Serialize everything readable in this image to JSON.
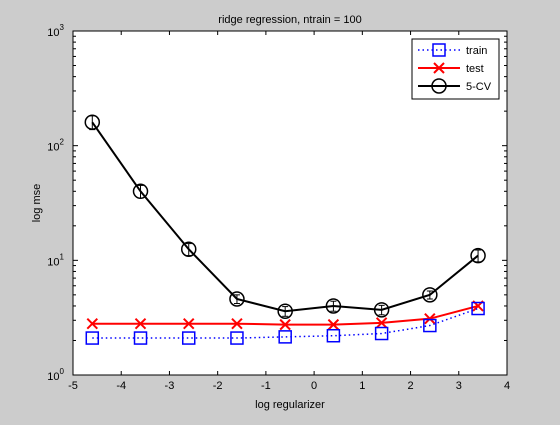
{
  "chart_data": {
    "type": "line",
    "title": "ridge regression, ntrain = 100",
    "xlabel": "log regularizer",
    "ylabel": "log mse",
    "xlim": [
      -5,
      4
    ],
    "ylim": [
      1,
      1000
    ],
    "yscale": "log",
    "grid": false,
    "legend_position": "top-right",
    "x_ticks": [
      "-5",
      "-4",
      "-3",
      "-2",
      "-1",
      "0",
      "1",
      "2",
      "3",
      "4"
    ],
    "y_ticks": [
      {
        "base": "10",
        "exp": "0"
      },
      {
        "base": "10",
        "exp": "1"
      },
      {
        "base": "10",
        "exp": "2"
      },
      {
        "base": "10",
        "exp": "3"
      }
    ],
    "x": [
      -4.6,
      -3.6,
      -2.6,
      -1.6,
      -0.6,
      0.4,
      1.4,
      2.4,
      3.4
    ],
    "series": [
      {
        "name": "train",
        "color": "#0000ff",
        "line": "dotted",
        "marker": "square",
        "values": [
          2.1,
          2.1,
          2.1,
          2.1,
          2.15,
          2.2,
          2.3,
          2.7,
          3.8
        ]
      },
      {
        "name": "test",
        "color": "#ff0000",
        "line": "solid",
        "marker": "x",
        "values": [
          2.8,
          2.8,
          2.8,
          2.8,
          2.75,
          2.75,
          2.85,
          3.1,
          4.0
        ]
      },
      {
        "name": "5-CV",
        "color": "#000000",
        "line": "solid",
        "marker": "circle",
        "errorbars": true,
        "values": [
          160,
          40,
          12.5,
          4.6,
          3.6,
          4.0,
          3.7,
          5.0,
          11
        ],
        "errors": [
          22,
          5,
          1.5,
          0.4,
          0.35,
          0.4,
          0.35,
          0.4,
          1.3
        ]
      }
    ]
  }
}
